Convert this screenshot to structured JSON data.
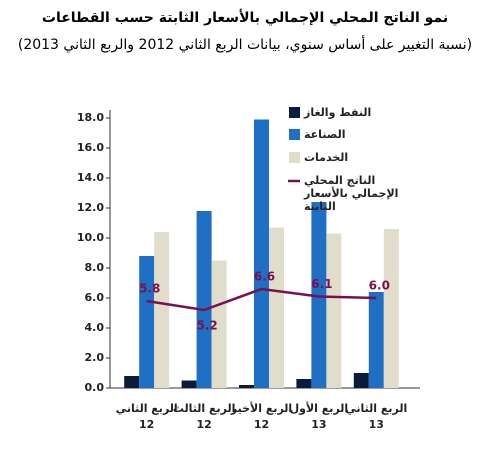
{
  "chart_data": {
    "type": "bar",
    "title": "نمو الناتج المحلي الإجمالي بالأسعار الثابتة حسب القطاعات",
    "subtitle": "(نسبة التغيير على أساس سنوي، بيانات الربع الثاني 2012 والربع الثاني 2013)",
    "categories": [
      [
        "الربع الثاني",
        "12"
      ],
      [
        "الربع الثالث",
        "12"
      ],
      [
        "الربع الأخير",
        "12"
      ],
      [
        "الربع الأول",
        "13"
      ],
      [
        "الربع الثاني",
        "13"
      ]
    ],
    "series": [
      {
        "name": "النفط والغاز",
        "color": "#0b1c3a",
        "values": [
          0.8,
          0.5,
          0.2,
          0.6,
          1.0
        ]
      },
      {
        "name": "الصناعة",
        "color": "#1f6fc5",
        "values": [
          8.8,
          11.8,
          17.9,
          12.4,
          6.4
        ]
      },
      {
        "name": "الخدمات",
        "color": "#e1ddcb",
        "values": [
          10.4,
          8.5,
          10.7,
          10.3,
          10.6
        ]
      },
      {
        "name": "الناتج المحلي الإجمالي بالأسعار الثابتة",
        "color": "#7a1050",
        "type": "line",
        "values": [
          5.8,
          5.2,
          6.6,
          6.1,
          6.0
        ],
        "value_labels": [
          "5.8",
          "5.2",
          "6.6",
          "6.1",
          "6.0"
        ]
      }
    ],
    "ylim": [
      0,
      18
    ],
    "yticks": [
      {
        "value": 0,
        "label": "0.0"
      },
      {
        "value": 2,
        "label": "2.0"
      },
      {
        "value": 4,
        "label": "4.0"
      },
      {
        "value": 6,
        "label": "6.0"
      },
      {
        "value": 8,
        "label": "8.0"
      },
      {
        "value": 10,
        "label": "10.0"
      },
      {
        "value": 12,
        "label": "12.0"
      },
      {
        "value": 14,
        "label": "14.0"
      },
      {
        "value": 16,
        "label": "16.0"
      },
      {
        "value": 18,
        "label": "18.0"
      }
    ],
    "grid": false
  }
}
